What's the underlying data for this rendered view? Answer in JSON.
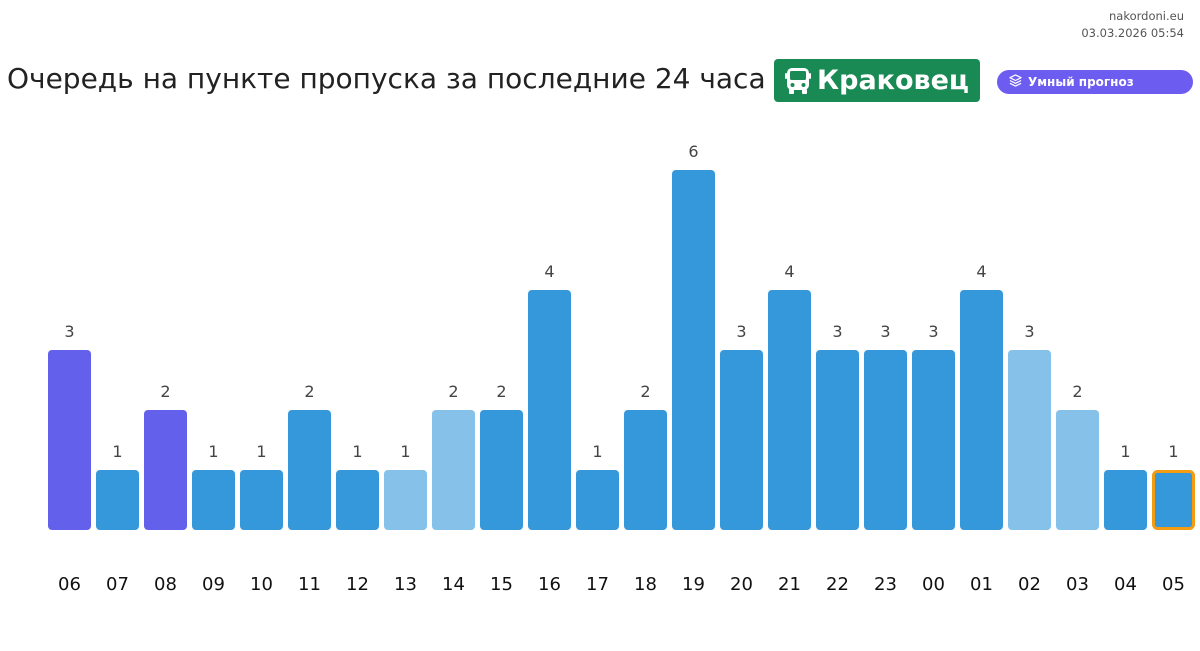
{
  "header": {
    "site": "nakordoni.eu",
    "timestamp": "03.03.2026 05:54",
    "title": "Очередь на пункте пропуска за последние 24 часа",
    "crossing_name": "Краковец",
    "crossing_icon": "bus-icon",
    "forecast_label": "Умный прогноз",
    "forecast_icon": "layers-icon"
  },
  "colors": {
    "badge": "#1a8a55",
    "pill": "#6d5cf0",
    "bar_default": "#3498db",
    "bar_light": "#85c1e9",
    "bar_purple": "#6360ec",
    "current_outline": "#f39c12"
  },
  "chart_data": {
    "type": "bar",
    "title": "Очередь на пункте пропуска за последние 24 часа",
    "xlabel": "",
    "ylabel": "",
    "categories": [
      "06",
      "07",
      "08",
      "09",
      "10",
      "11",
      "12",
      "13",
      "14",
      "15",
      "16",
      "17",
      "18",
      "19",
      "20",
      "21",
      "22",
      "23",
      "00",
      "01",
      "02",
      "03",
      "04",
      "05"
    ],
    "values": [
      3,
      1,
      2,
      1,
      1,
      2,
      1,
      1,
      2,
      2,
      4,
      1,
      2,
      6,
      3,
      4,
      3,
      3,
      3,
      4,
      3,
      2,
      1,
      1
    ],
    "bar_colors": [
      "purple",
      "default",
      "purple",
      "default",
      "default",
      "default",
      "default",
      "light",
      "light",
      "default",
      "default",
      "default",
      "default",
      "default",
      "default",
      "default",
      "default",
      "default",
      "default",
      "default",
      "light",
      "light",
      "default",
      "default"
    ],
    "current_hour": "05",
    "ylim": [
      0,
      6
    ],
    "grid": false,
    "data_labels": true
  }
}
